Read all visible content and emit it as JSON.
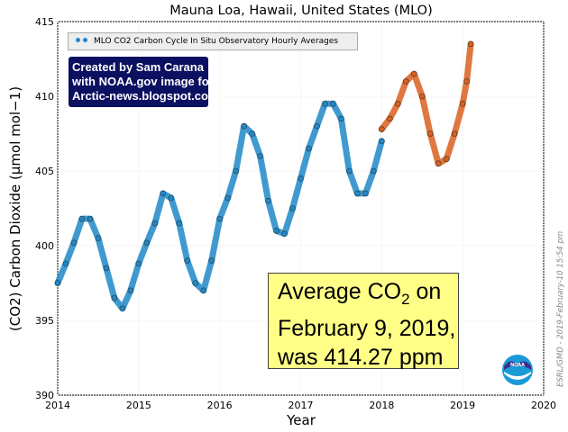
{
  "chart_data": {
    "type": "scatter",
    "title": "Mauna Loa, Hawaii, United States (MLO)",
    "xlabel": "Year",
    "ylabel": "(CO2) Carbon Dioxide (µmol mol−1)",
    "xlim": [
      2014,
      2020
    ],
    "ylim": [
      390,
      415
    ],
    "x_ticks": [
      "2014",
      "2015",
      "2016",
      "2017",
      "2018",
      "2019",
      "2020"
    ],
    "y_ticks": [
      "390",
      "395",
      "400",
      "405",
      "410",
      "415"
    ],
    "grid": true,
    "legend_position": "top-left",
    "series": [
      {
        "name": "MLO CO2 Carbon Cycle In Situ Observatory Hourly Averages",
        "color": "#1e88c8",
        "x": [
          2014.0,
          2014.1,
          2014.2,
          2014.3,
          2014.4,
          2014.5,
          2014.6,
          2014.7,
          2014.8,
          2014.9,
          2015.0,
          2015.1,
          2015.2,
          2015.3,
          2015.4,
          2015.5,
          2015.6,
          2015.7,
          2015.8,
          2015.9,
          2016.0,
          2016.1,
          2016.2,
          2016.3,
          2016.4,
          2016.5,
          2016.6,
          2016.7,
          2016.8,
          2016.9,
          2017.0,
          2017.1,
          2017.2,
          2017.3,
          2017.4,
          2017.5,
          2017.6,
          2017.7,
          2017.8,
          2017.9,
          2018.0
        ],
        "y": [
          397.5,
          398.8,
          400.2,
          401.8,
          401.8,
          400.5,
          398.5,
          396.5,
          395.8,
          397.0,
          398.8,
          400.2,
          401.5,
          403.5,
          403.2,
          401.5,
          399.0,
          397.5,
          397.0,
          399.0,
          401.8,
          403.2,
          405.0,
          408.0,
          407.5,
          406.0,
          403.0,
          401.0,
          400.8,
          402.5,
          404.5,
          406.5,
          408.0,
          409.5,
          409.5,
          408.5,
          405.0,
          403.5,
          403.5,
          405.0,
          407.0
        ]
      },
      {
        "name": "",
        "color": "#d9601e",
        "x": [
          2018.0,
          2018.1,
          2018.2,
          2018.3,
          2018.4,
          2018.5,
          2018.6,
          2018.7,
          2018.8,
          2018.9,
          2019.0,
          2019.05,
          2019.1
        ],
        "y": [
          407.8,
          408.5,
          409.5,
          411.0,
          411.5,
          410.0,
          407.5,
          405.5,
          405.8,
          407.5,
          409.5,
          411.0,
          413.5
        ]
      }
    ],
    "annotations": {
      "credit": [
        "Created by Sam Carana",
        "with NOAA.gov image for",
        "Arctic-news.blogspot.com"
      ],
      "callout_prefix": "Average CO",
      "callout_subscript": "2",
      "callout_suffix": " on",
      "callout_lines": [
        "February 9, 2019,",
        "was 414.27 ppm"
      ],
      "side_note": "ESRL/GMD - 2019-February-10 15:54 pm",
      "logo_text": "NOAA"
    }
  }
}
